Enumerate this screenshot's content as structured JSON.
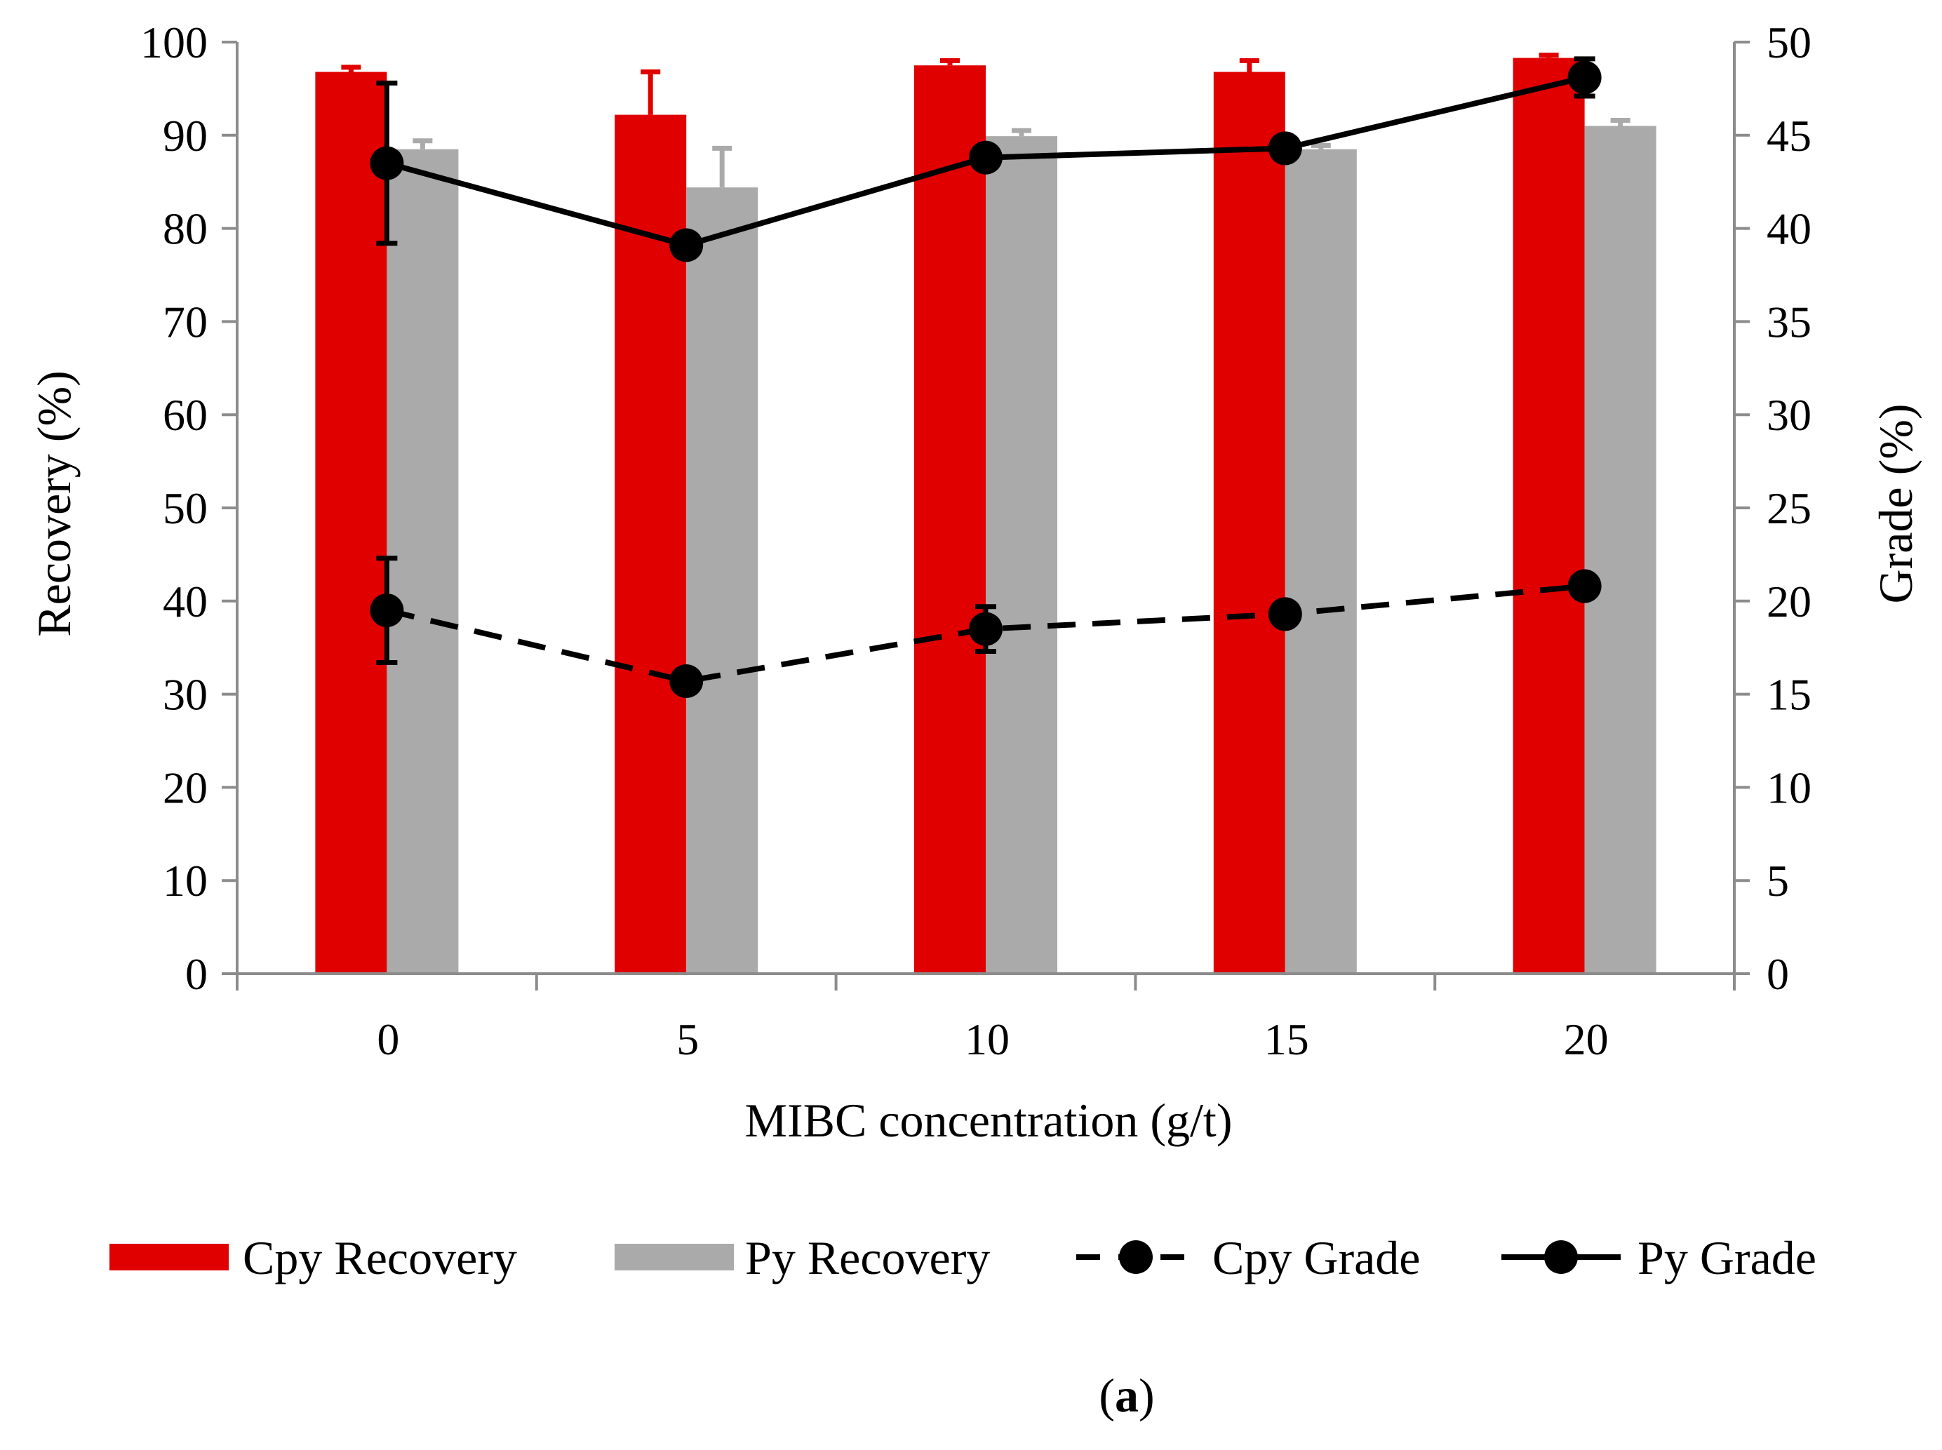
{
  "chart_data": {
    "type": "bar",
    "title": "",
    "panel_label": "(a)",
    "panel_letter": "a",
    "xlabel": "MIBC concentration (g/t)",
    "ylabel": "Recovery (%)",
    "y2label": "Grade (%)",
    "categories": [
      "0",
      "5",
      "10",
      "15",
      "20"
    ],
    "ylim": [
      0,
      100
    ],
    "y_ticks": [
      0,
      10,
      20,
      30,
      40,
      50,
      60,
      70,
      80,
      90,
      100
    ],
    "y2lim": [
      0,
      50
    ],
    "y2_ticks": [
      0,
      5,
      10,
      15,
      20,
      25,
      30,
      35,
      40,
      45,
      50
    ],
    "grid": false,
    "legend_position": "bottom",
    "series": [
      {
        "name": "Cpy Recovery",
        "kind": "bar",
        "axis": "left",
        "color": "#e00000",
        "values": [
          96.8,
          92.2,
          97.5,
          96.8,
          98.3
        ],
        "errors": [
          0.5,
          4.6,
          0.5,
          1.2,
          0.3
        ]
      },
      {
        "name": "Py Recovery",
        "kind": "bar",
        "axis": "left",
        "color": "#aaaaaa",
        "values": [
          88.5,
          84.4,
          89.9,
          88.5,
          91.0
        ],
        "errors": [
          0.9,
          4.2,
          0.6,
          0.4,
          0.6
        ]
      },
      {
        "name": "Cpy Grade",
        "kind": "line",
        "style": "dashed",
        "axis": "right",
        "color": "#000000",
        "values": [
          19.5,
          15.7,
          18.5,
          19.3,
          20.8
        ],
        "errors": [
          2.8,
          0.0,
          1.2,
          0.0,
          0.0
        ]
      },
      {
        "name": "Py Grade",
        "kind": "line",
        "style": "solid",
        "axis": "right",
        "color": "#000000",
        "values": [
          43.5,
          39.1,
          43.8,
          44.3,
          48.1
        ],
        "errors": [
          4.3,
          0.0,
          0.0,
          0.0,
          1.0
        ]
      }
    ]
  }
}
